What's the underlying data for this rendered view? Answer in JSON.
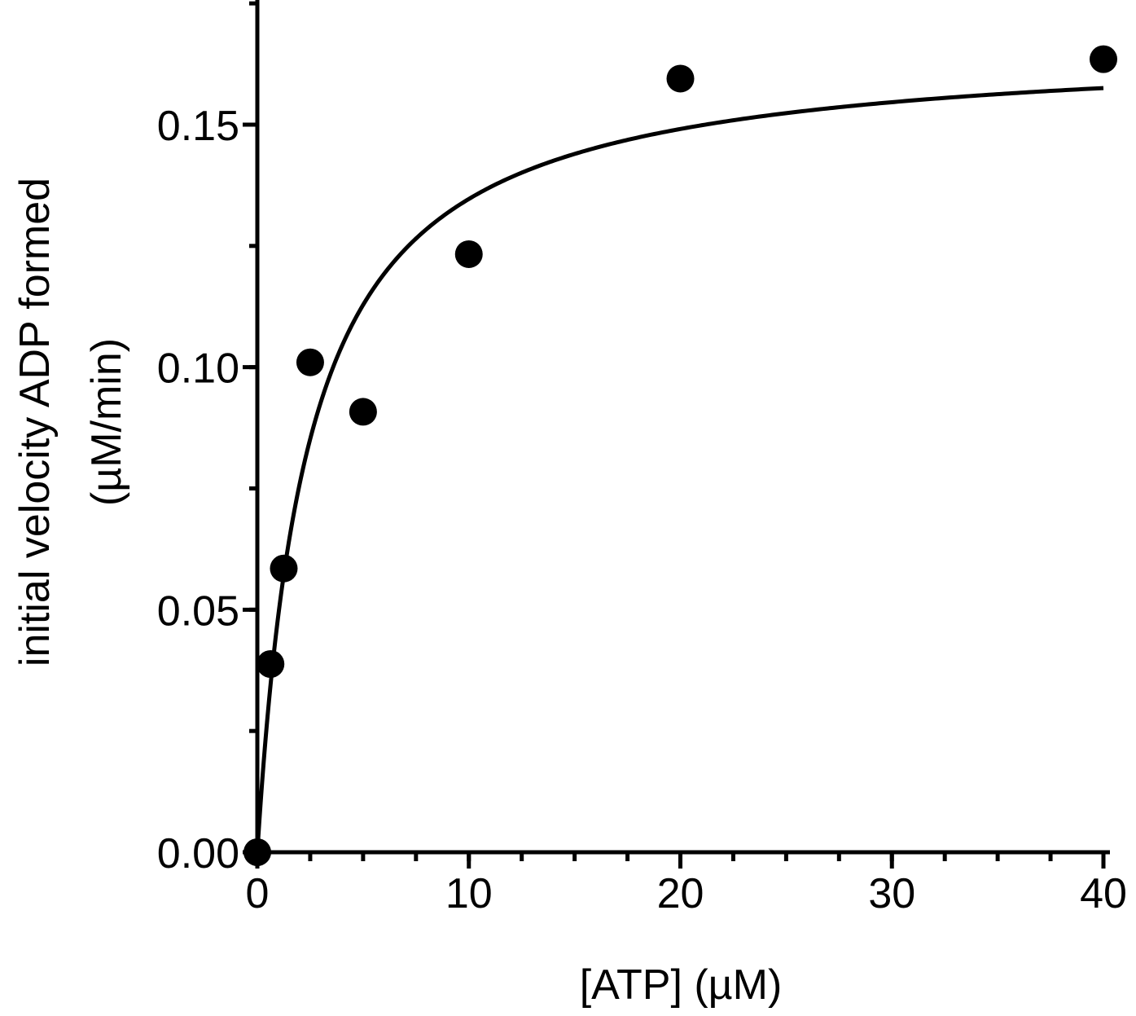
{
  "chart_data": {
    "type": "scatter",
    "title": "",
    "xlabel": "[ATP] (µM)",
    "ylabel_line1": "initial velocity ADP formed",
    "ylabel_line2": "(µM/min)",
    "xlim": [
      0,
      40
    ],
    "ylim": [
      0,
      0.175
    ],
    "x_ticks": [
      0,
      10,
      20,
      30,
      40
    ],
    "x_tick_labels": [
      "0",
      "10",
      "20",
      "30",
      "40"
    ],
    "y_ticks": [
      0.0,
      0.05,
      0.1,
      0.15
    ],
    "y_tick_labels": [
      "0.00",
      "0.05",
      "0.10",
      "0.15"
    ],
    "x_minor_step": 2.5,
    "y_minor_step": 0.025,
    "grid": false,
    "axis_break_at": 10,
    "points": [
      {
        "x": 0,
        "y": 0.0
      },
      {
        "x": 0.625,
        "y": 0.0388
      },
      {
        "x": 1.25,
        "y": 0.0585
      },
      {
        "x": 2.5,
        "y": 0.101
      },
      {
        "x": 5,
        "y": 0.0908
      },
      {
        "x": 10,
        "y": 0.1233
      },
      {
        "x": 20,
        "y": 0.1595
      },
      {
        "x": 40,
        "y": 0.1635
      }
    ],
    "fit": {
      "model": "michaelis-menten",
      "vmax": 0.167,
      "km": 2.4
    },
    "colors": {
      "points": "#000000",
      "line": "#000000",
      "axes": "#000000"
    }
  }
}
